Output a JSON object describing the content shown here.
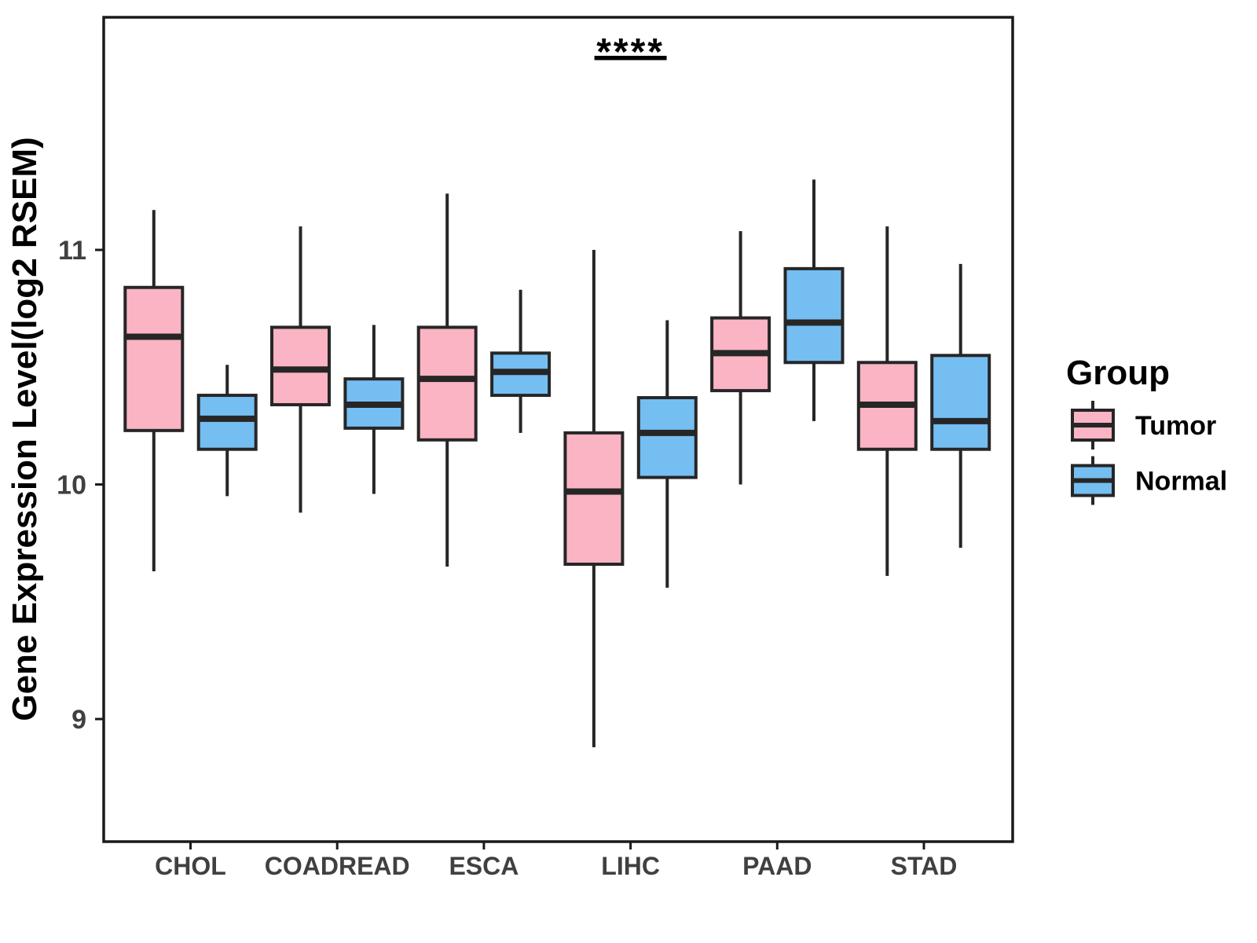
{
  "page": {
    "background": "#FFFFFF"
  },
  "chart_data": {
    "type": "boxplot",
    "title": "",
    "ylabel": "Gene Expression Level(log2 RSEM)",
    "xlabel": "",
    "ylim": [
      8.5,
      12.0
    ],
    "y_ticks": [
      "11",
      "10",
      "9"
    ],
    "y_tick_values": [
      11,
      10,
      9
    ],
    "grid": false,
    "legend_position": "right",
    "legend_title": "Group",
    "categories": [
      "CHOL",
      "COADREAD",
      "ESCA",
      "LIHC",
      "PAAD",
      "STAD"
    ],
    "groups": [
      {
        "name": "Tumor",
        "fill": "#FAB4C3"
      },
      {
        "name": "Normal",
        "fill": "#75BEF2"
      }
    ],
    "series": [
      {
        "group": "Tumor",
        "boxes": [
          {
            "category": "CHOL",
            "min": 9.63,
            "q1": 10.23,
            "median": 10.63,
            "q3": 10.84,
            "max": 11.17
          },
          {
            "category": "COADREAD",
            "min": 9.88,
            "q1": 10.34,
            "median": 10.49,
            "q3": 10.67,
            "max": 11.1
          },
          {
            "category": "ESCA",
            "min": 9.65,
            "q1": 10.19,
            "median": 10.45,
            "q3": 10.67,
            "max": 11.24
          },
          {
            "category": "LIHC",
            "min": 8.88,
            "q1": 9.66,
            "median": 9.97,
            "q3": 10.22,
            "max": 11.0
          },
          {
            "category": "PAAD",
            "min": 10.0,
            "q1": 10.4,
            "median": 10.56,
            "q3": 10.71,
            "max": 11.08
          },
          {
            "category": "STAD",
            "min": 9.61,
            "q1": 10.15,
            "median": 10.34,
            "q3": 10.52,
            "max": 11.1
          }
        ]
      },
      {
        "group": "Normal",
        "boxes": [
          {
            "category": "CHOL",
            "min": 9.95,
            "q1": 10.15,
            "median": 10.28,
            "q3": 10.38,
            "max": 10.51
          },
          {
            "category": "COADREAD",
            "min": 9.96,
            "q1": 10.24,
            "median": 10.34,
            "q3": 10.45,
            "max": 10.68
          },
          {
            "category": "ESCA",
            "min": 10.22,
            "q1": 10.38,
            "median": 10.48,
            "q3": 10.56,
            "max": 10.83
          },
          {
            "category": "LIHC",
            "min": 9.56,
            "q1": 10.03,
            "median": 10.22,
            "q3": 10.37,
            "max": 10.7
          },
          {
            "category": "PAAD",
            "min": 10.27,
            "q1": 10.52,
            "median": 10.69,
            "q3": 10.92,
            "max": 11.3
          },
          {
            "category": "STAD",
            "min": 9.73,
            "q1": 10.15,
            "median": 10.27,
            "q3": 10.55,
            "max": 10.94
          }
        ]
      }
    ],
    "annotation": {
      "text": "****",
      "category": "LIHC",
      "underline": true
    },
    "colors": {
      "box_line": "#262626",
      "panel_border": "#1a1a1a",
      "tick_text": "#404040",
      "axis_title": "#000000",
      "legend_text": "#000000",
      "annotation": "#000000"
    }
  }
}
